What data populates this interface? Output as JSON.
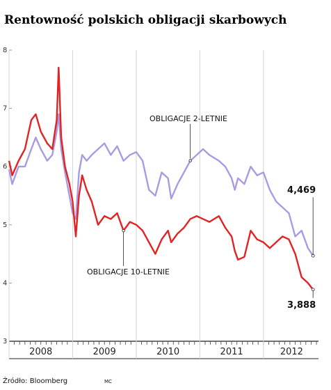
{
  "chart_data": {
    "type": "line",
    "title": "Rentowność polskich obligacji skarbowych",
    "source": "Źródło: Bloomberg",
    "credit": "MC",
    "x": [
      2008.0,
      2008.05,
      2008.15,
      2008.25,
      2008.35,
      2008.42,
      2008.5,
      2008.6,
      2008.68,
      2008.75,
      2008.78,
      2008.82,
      2008.88,
      2008.95,
      2009.0,
      2009.05,
      2009.1,
      2009.15,
      2009.22,
      2009.3,
      2009.4,
      2009.5,
      2009.6,
      2009.7,
      2009.8,
      2009.9,
      2010.0,
      2010.1,
      2010.2,
      2010.3,
      2010.4,
      2010.5,
      2010.55,
      2010.65,
      2010.75,
      2010.85,
      2010.95,
      2011.05,
      2011.15,
      2011.3,
      2011.4,
      2011.5,
      2011.55,
      2011.6,
      2011.7,
      2011.8,
      2011.9,
      2012.0,
      2012.1,
      2012.2,
      2012.3,
      2012.4,
      2012.5,
      2012.6,
      2012.7,
      2012.78
    ],
    "series": [
      {
        "name": "OBLIGACJE 2-LETNIE",
        "color": "#a99be3",
        "values": [
          5.95,
          5.7,
          6.0,
          6.0,
          6.3,
          6.5,
          6.3,
          6.1,
          6.2,
          6.6,
          6.9,
          6.3,
          5.9,
          5.5,
          5.2,
          5.1,
          5.9,
          6.2,
          6.1,
          6.2,
          6.3,
          6.4,
          6.2,
          6.35,
          6.1,
          6.2,
          6.25,
          6.1,
          5.6,
          5.5,
          5.9,
          5.8,
          5.45,
          5.7,
          5.9,
          6.1,
          6.2,
          6.3,
          6.2,
          6.1,
          6.0,
          5.8,
          5.6,
          5.8,
          5.7,
          6.0,
          5.85,
          5.9,
          5.6,
          5.4,
          5.3,
          5.2,
          4.8,
          4.9,
          4.6,
          4.469
        ],
        "value_labels": [
          null,
          null,
          null,
          null,
          null,
          null,
          null,
          null,
          null,
          null,
          null,
          null,
          null,
          null,
          null,
          null,
          null,
          null,
          null,
          null,
          null,
          null,
          null,
          null,
          null,
          null,
          null,
          null,
          null,
          null,
          null,
          null,
          null,
          null,
          null,
          null,
          null,
          null,
          null,
          null,
          null,
          null,
          null,
          null,
          null,
          null,
          null,
          null,
          null,
          null,
          null,
          null,
          null,
          null,
          null,
          "4,469"
        ]
      },
      {
        "name": "OBLIGACJE 10-LETNIE",
        "color": "#e32222",
        "values": [
          6.1,
          5.85,
          6.1,
          6.3,
          6.8,
          6.9,
          6.6,
          6.4,
          6.3,
          6.8,
          7.7,
          6.5,
          6.0,
          5.7,
          5.4,
          4.8,
          5.5,
          5.85,
          5.6,
          5.4,
          5.0,
          5.15,
          5.1,
          5.2,
          4.9,
          5.05,
          5.0,
          4.9,
          4.7,
          4.5,
          4.75,
          4.9,
          4.7,
          4.85,
          4.95,
          5.1,
          5.15,
          5.1,
          5.05,
          5.15,
          4.95,
          4.8,
          4.55,
          4.4,
          4.45,
          4.9,
          4.75,
          4.7,
          4.6,
          4.7,
          4.8,
          4.75,
          4.5,
          4.1,
          4.0,
          3.888
        ],
        "value_labels": [
          null,
          null,
          null,
          null,
          null,
          null,
          null,
          null,
          null,
          null,
          null,
          null,
          null,
          null,
          null,
          null,
          null,
          null,
          null,
          null,
          null,
          null,
          null,
          null,
          null,
          null,
          null,
          null,
          null,
          null,
          null,
          null,
          null,
          null,
          null,
          null,
          null,
          null,
          null,
          null,
          null,
          null,
          null,
          null,
          null,
          null,
          null,
          null,
          null,
          null,
          null,
          null,
          null,
          null,
          null,
          "3,888"
        ]
      }
    ],
    "xlim": [
      2008,
      2012.8
    ],
    "xticks": [
      2008,
      2009,
      2010,
      2011,
      2012
    ],
    "ylim": [
      3,
      8
    ],
    "yticks": [
      3,
      4,
      5,
      6,
      7,
      8
    ],
    "grid": true
  }
}
